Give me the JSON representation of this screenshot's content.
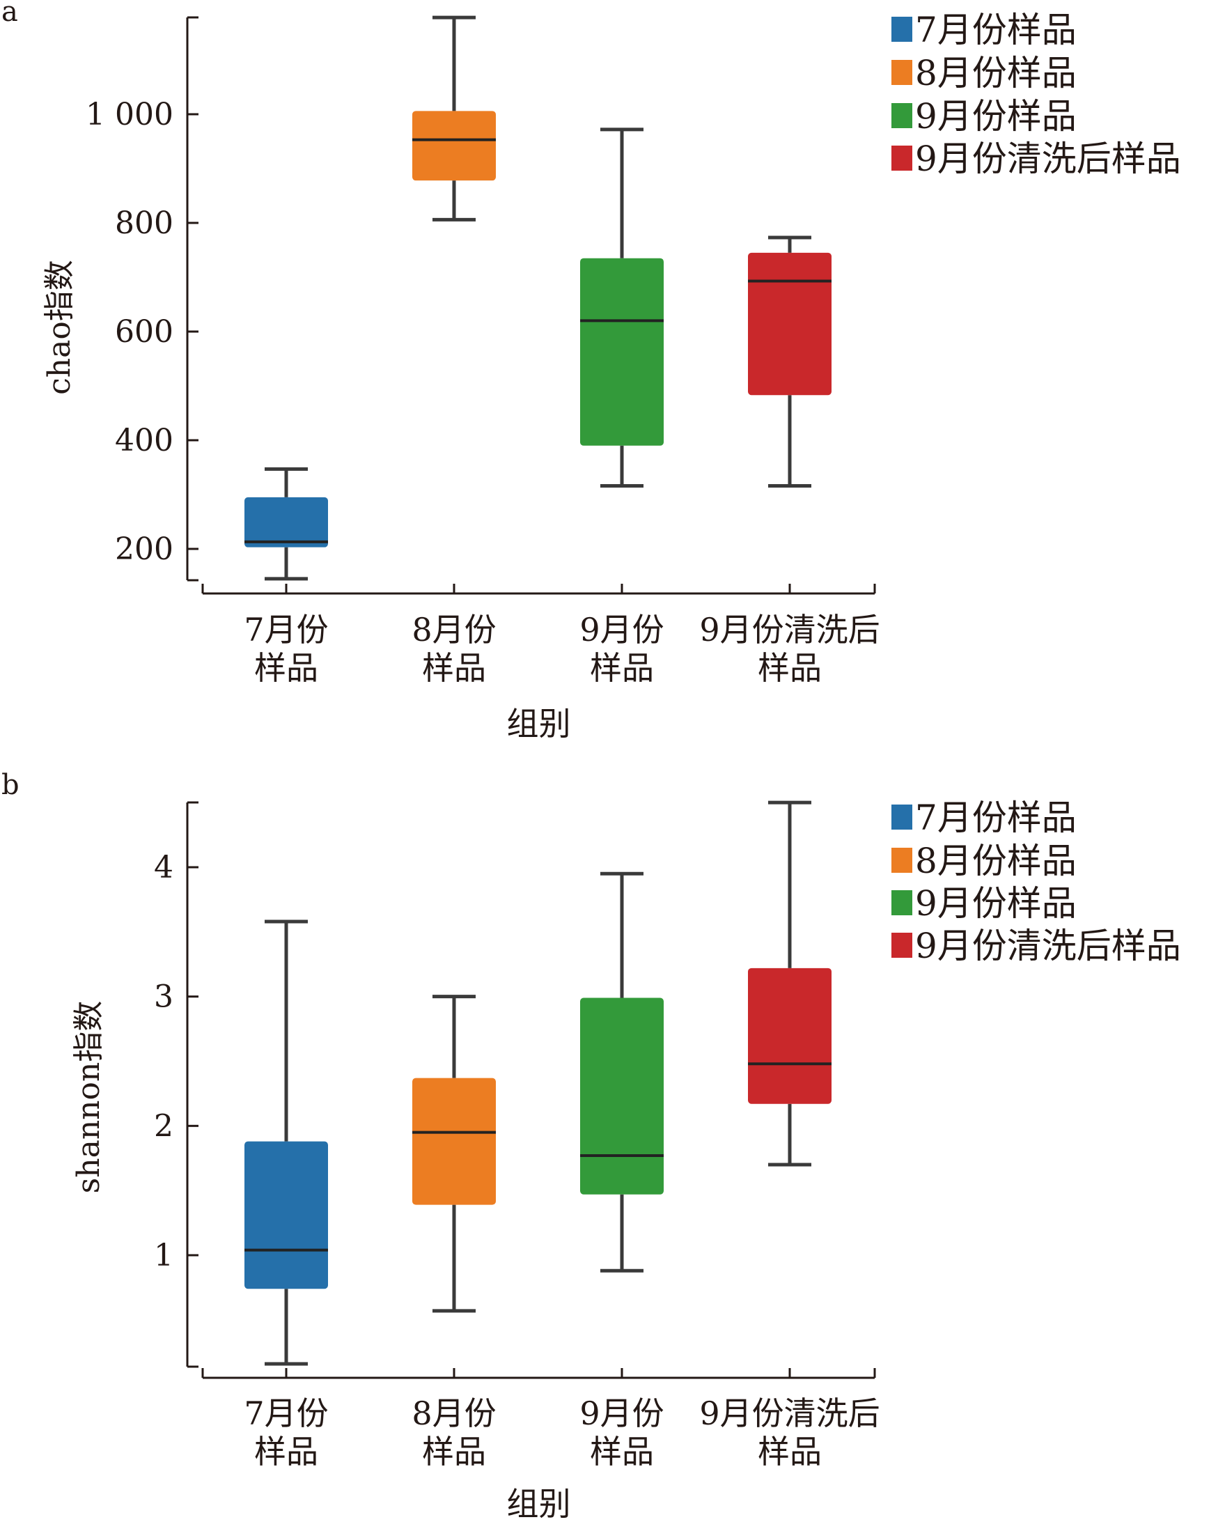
{
  "chart_data": [
    {
      "panel_label": "a",
      "type": "box",
      "ylabel": "chao指数",
      "xlabel": "组别",
      "ylim": [
        135,
        1180
      ],
      "yticks": [
        200,
        400,
        600,
        800,
        1000
      ],
      "ytick_labels": [
        "200",
        "400",
        "600",
        "800",
        "1 000"
      ],
      "categories": [
        {
          "line1": "7月份",
          "line2": "样品"
        },
        {
          "line1": "8月份",
          "line2": "样品"
        },
        {
          "line1": "9月份",
          "line2": "样品"
        },
        {
          "line1": "9月份清洗后",
          "line2": "样品"
        }
      ],
      "series": [
        {
          "name": "7月份样品",
          "color": "#2570aa",
          "whisker_low": 145,
          "q1": 203,
          "median": 213,
          "q3": 295,
          "whisker_high": 347
        },
        {
          "name": "8月份样品",
          "color": "#ec7d22",
          "whisker_low": 806,
          "q1": 878,
          "median": 953,
          "q3": 1006,
          "whisker_high": 1178
        },
        {
          "name": "9月份样品",
          "color": "#339a3a",
          "whisker_low": 316,
          "q1": 390,
          "median": 620,
          "q3": 735,
          "whisker_high": 972
        },
        {
          "name": "9月份清洗后样品",
          "color": "#c9282b",
          "whisker_low": 316,
          "q1": 483,
          "median": 693,
          "q3": 745,
          "whisker_high": 773
        }
      ],
      "legend": {
        "position": "top-right",
        "entries": [
          "7月份样品",
          "8月份样品",
          "9月份样品",
          "9月份清洗后样品"
        ]
      }
    },
    {
      "panel_label": "b",
      "type": "box",
      "ylabel": "shannon指数",
      "xlabel": "组别",
      "ylim": [
        0.14,
        4.5
      ],
      "yticks": [
        1,
        2,
        3,
        4
      ],
      "ytick_labels": [
        "1",
        "2",
        "3",
        "4"
      ],
      "categories": [
        {
          "line1": "7月份",
          "line2": "样品"
        },
        {
          "line1": "8月份",
          "line2": "样品"
        },
        {
          "line1": "9月份",
          "line2": "样品"
        },
        {
          "line1": "9月份清洗后",
          "line2": "样品"
        }
      ],
      "series": [
        {
          "name": "7月份样品",
          "color": "#2570aa",
          "whisker_low": 0.16,
          "q1": 0.74,
          "median": 1.04,
          "q3": 1.88,
          "whisker_high": 3.58
        },
        {
          "name": "8月份样品",
          "color": "#ec7d22",
          "whisker_low": 0.57,
          "q1": 1.39,
          "median": 1.95,
          "q3": 2.37,
          "whisker_high": 3.0
        },
        {
          "name": "9月份样品",
          "color": "#339a3a",
          "whisker_low": 0.88,
          "q1": 1.47,
          "median": 1.77,
          "q3": 2.99,
          "whisker_high": 3.95
        },
        {
          "name": "9月份清洗后样品",
          "color": "#c9282b",
          "whisker_low": 1.7,
          "q1": 2.17,
          "median": 2.48,
          "q3": 3.22,
          "whisker_high": 4.5
        }
      ],
      "legend": {
        "position": "top-right",
        "entries": [
          "7月份样品",
          "8月份样品",
          "9月份样品",
          "9月份清洗后样品"
        ]
      }
    }
  ]
}
